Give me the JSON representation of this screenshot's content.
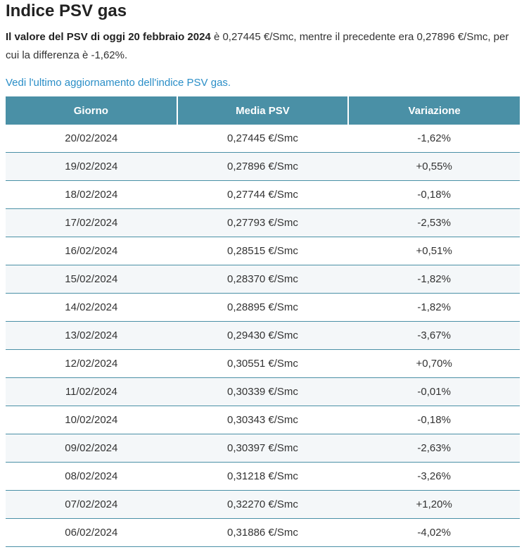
{
  "page": {
    "title": "Indice PSV gas",
    "intro_bold": "Il valore del PSV di oggi 20 febbraio 2024",
    "intro_rest": " è 0,27445 €/Smc, mentre il precedente era 0,27896 €/Smc, per cui la differenza è -1,62%.",
    "link_text": "Vedi l'ultimo aggiornamento dell'indice PSV gas."
  },
  "table": {
    "headers": [
      "Giorno",
      "Media PSV",
      "Variazione"
    ],
    "rows": [
      {
        "day": "20/02/2024",
        "value": "0,27445 €/Smc",
        "change": "-1,62%"
      },
      {
        "day": "19/02/2024",
        "value": "0,27896 €/Smc",
        "change": "+0,55%"
      },
      {
        "day": "18/02/2024",
        "value": "0,27744 €/Smc",
        "change": "-0,18%"
      },
      {
        "day": "17/02/2024",
        "value": "0,27793 €/Smc",
        "change": "-2,53%"
      },
      {
        "day": "16/02/2024",
        "value": "0,28515 €/Smc",
        "change": "+0,51%"
      },
      {
        "day": "15/02/2024",
        "value": "0,28370 €/Smc",
        "change": "-1,82%"
      },
      {
        "day": "14/02/2024",
        "value": "0,28895 €/Smc",
        "change": "-1,82%"
      },
      {
        "day": "13/02/2024",
        "value": "0,29430 €/Smc",
        "change": "-3,67%"
      },
      {
        "day": "12/02/2024",
        "value": "0,30551 €/Smc",
        "change": "+0,70%"
      },
      {
        "day": "11/02/2024",
        "value": "0,30339 €/Smc",
        "change": "-0,01%"
      },
      {
        "day": "10/02/2024",
        "value": "0,30343 €/Smc",
        "change": "-0,18%"
      },
      {
        "day": "09/02/2024",
        "value": "0,30397 €/Smc",
        "change": "-2,63%"
      },
      {
        "day": "08/02/2024",
        "value": "0,31218 €/Smc",
        "change": "-3,26%"
      },
      {
        "day": "07/02/2024",
        "value": "0,32270 €/Smc",
        "change": "+1,20%"
      },
      {
        "day": "06/02/2024",
        "value": "0,31886 €/Smc",
        "change": "-4,02%"
      }
    ]
  },
  "colors": {
    "header_bg": "#4a90a6",
    "link": "#2a8ec7",
    "row_alt": "#f4f7f9"
  }
}
